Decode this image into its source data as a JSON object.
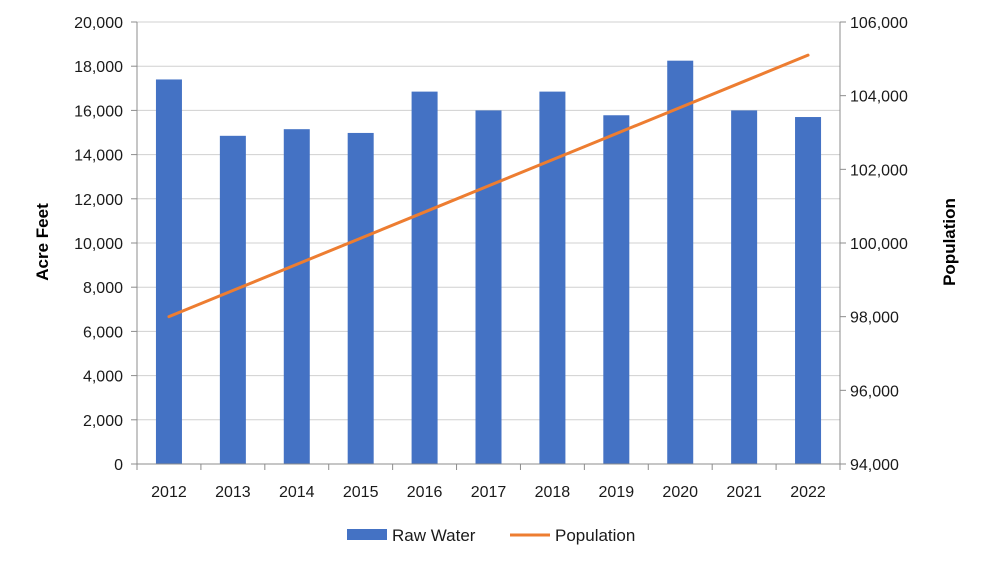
{
  "chart_data": {
    "type": "bar",
    "categories": [
      "2012",
      "2013",
      "2014",
      "2015",
      "2016",
      "2017",
      "2018",
      "2019",
      "2020",
      "2021",
      "2022"
    ],
    "series": [
      {
        "name": "Raw Water",
        "type": "bar",
        "axis": "left",
        "color": "#4472C4",
        "values": [
          17400,
          14850,
          15150,
          14980,
          16850,
          16000,
          16850,
          15780,
          18250,
          16000,
          15700
        ]
      },
      {
        "name": "Population",
        "type": "line",
        "axis": "right",
        "color": "#ED7D31",
        "values": [
          98000,
          98710,
          99420,
          100130,
          100840,
          101550,
          102260,
          102970,
          103680,
          104390,
          105100
        ]
      }
    ],
    "ylabel": "Acre Feet",
    "y2label": "Population",
    "ylim": [
      0,
      20000
    ],
    "y2lim": [
      94000,
      106000
    ],
    "yticks": [
      "0",
      "2,000",
      "4,000",
      "6,000",
      "8,000",
      "10,000",
      "12,000",
      "14,000",
      "16,000",
      "18,000",
      "20,000"
    ],
    "y2ticks": [
      "94,000",
      "96,000",
      "98,000",
      "100,000",
      "102,000",
      "104,000",
      "106,000"
    ],
    "grid": true,
    "legend": "bottom"
  }
}
